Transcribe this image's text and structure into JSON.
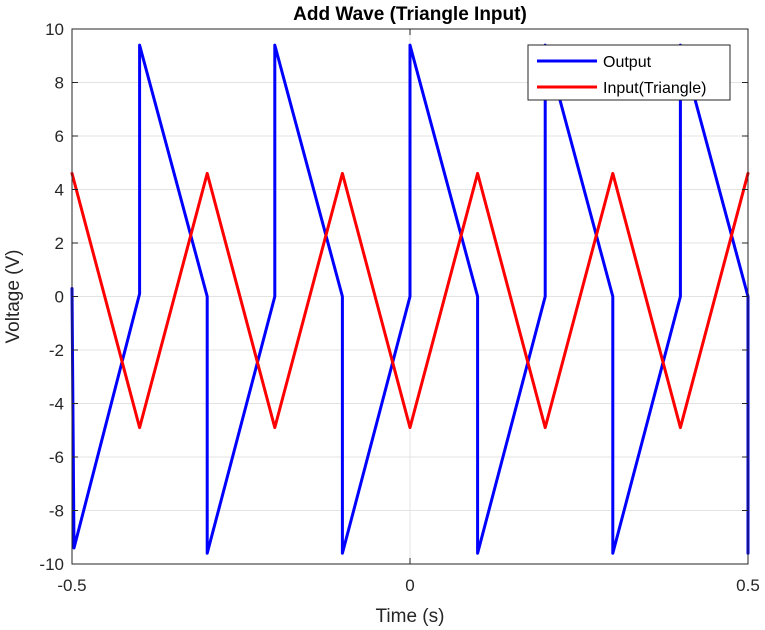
{
  "chart_data": {
    "type": "line",
    "title": "Add Wave (Triangle Input)",
    "xlabel": "Time (s)",
    "ylabel": "Voltage (V)",
    "xlim": [
      -0.5,
      0.5
    ],
    "ylim": [
      -10,
      10
    ],
    "xticks": [
      -0.5,
      0,
      0.5
    ],
    "xtick_labels": [
      "-0.5",
      "0",
      "0.5"
    ],
    "yticks": [
      -10,
      -8,
      -6,
      -4,
      -2,
      0,
      2,
      4,
      6,
      8,
      10
    ],
    "ytick_labels": [
      "-10",
      "-8",
      "-6",
      "-4",
      "-2",
      "0",
      "2",
      "4",
      "6",
      "8",
      "10"
    ],
    "grid": true,
    "legend_position": "top-right",
    "series": [
      {
        "name": "Output",
        "color": "#0000FF",
        "points": [
          [
            -0.5,
            0.3
          ],
          [
            -0.497,
            -9.4
          ],
          [
            -0.4,
            0.1
          ],
          [
            -0.4,
            9.4
          ],
          [
            -0.3,
            0.0
          ],
          [
            -0.3,
            -9.6
          ],
          [
            -0.2,
            0.0
          ],
          [
            -0.2,
            9.4
          ],
          [
            -0.1,
            0.0
          ],
          [
            -0.1,
            -9.6
          ],
          [
            0.0,
            0.0
          ],
          [
            0.0,
            9.4
          ],
          [
            0.1,
            0.0
          ],
          [
            0.1,
            -9.6
          ],
          [
            0.2,
            0.0
          ],
          [
            0.2,
            9.4
          ],
          [
            0.3,
            0.0
          ],
          [
            0.3,
            -9.6
          ],
          [
            0.4,
            0.0
          ],
          [
            0.4,
            9.4
          ],
          [
            0.5,
            0.0
          ],
          [
            0.5,
            -9.6
          ]
        ]
      },
      {
        "name": "Input(Triangle)",
        "color": "#FF0000",
        "points": [
          [
            -0.5,
            4.6
          ],
          [
            -0.4,
            -4.9
          ],
          [
            -0.3,
            4.6
          ],
          [
            -0.2,
            -4.9
          ],
          [
            -0.1,
            4.6
          ],
          [
            0.0,
            -4.9
          ],
          [
            0.1,
            4.6
          ],
          [
            0.2,
            -4.9
          ],
          [
            0.3,
            4.6
          ],
          [
            0.4,
            -4.9
          ],
          [
            0.5,
            4.6
          ]
        ]
      }
    ]
  }
}
